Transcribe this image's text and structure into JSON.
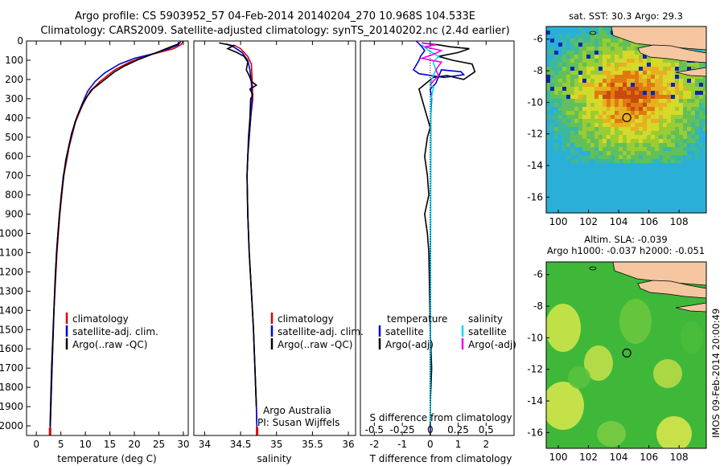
{
  "header": {
    "title_line1": "Argo profile: CS 5903952_57 04-Feb-2014 20140204_270 10.968S 104.533E",
    "title_line2": "Climatology: CARS2009. Satellite-adjusted climatology: synTS_20140202.nc (2.4d earlier)"
  },
  "colors": {
    "climatology": "#dd0000",
    "satellite": "#0000dd",
    "argo": "#000000",
    "sat_salinity": "#00d8ee",
    "argo_salinity": "#ee00ee",
    "land": "#f5c6a0"
  },
  "chart_data": [
    {
      "type": "line",
      "id": "temperature",
      "xlabel": "temperature (deg C)",
      "xlim": [
        -2,
        31
      ],
      "xticks": [
        0,
        5,
        10,
        15,
        20,
        25,
        30
      ],
      "xtick_labels": [
        "0",
        "5",
        "10",
        "15",
        "20",
        "25",
        "30"
      ],
      "ylim": [
        0,
        2050
      ],
      "yticks": [
        0,
        100,
        200,
        300,
        400,
        500,
        600,
        700,
        800,
        900,
        1000,
        1100,
        1200,
        1300,
        1400,
        1500,
        1600,
        1700,
        1800,
        1900,
        2000
      ],
      "ytick_labels": [
        "0",
        "100",
        "200",
        "300",
        "400",
        "500",
        "600",
        "700",
        "800",
        "900",
        "1000",
        "1100",
        "1200",
        "1300",
        "1400",
        "1500",
        "1600",
        "1700",
        "1800",
        "1900",
        "2000"
      ],
      "legend": [
        "climatology",
        "satellite-adj. clim.",
        "Argo(..raw -QC)"
      ],
      "series": [
        {
          "name": "climatology",
          "color": "#dd0000",
          "points": [
            [
              30,
              0
            ],
            [
              29.5,
              20
            ],
            [
              28,
              40
            ],
            [
              25,
              60
            ],
            [
              22,
              80
            ],
            [
              19,
              110
            ],
            [
              16,
              150
            ],
            [
              13,
              210
            ],
            [
              11,
              260
            ],
            [
              9.5,
              330
            ],
            [
              8,
              420
            ],
            [
              6.7,
              550
            ],
            [
              5.6,
              700
            ],
            [
              4.8,
              900
            ],
            [
              4.2,
              1100
            ],
            [
              3.6,
              1400
            ],
            [
              3.2,
              1700
            ],
            [
              2.8,
              2050
            ]
          ]
        },
        {
          "name": "satellite-adj. clim.",
          "color": "#0000dd",
          "points": [
            [
              29.5,
              0
            ],
            [
              29,
              20
            ],
            [
              27,
              40
            ],
            [
              24,
              65
            ],
            [
              20,
              90
            ],
            [
              17,
              120
            ],
            [
              14,
              165
            ],
            [
              12,
              210
            ],
            [
              10.5,
              260
            ],
            [
              9.3,
              330
            ],
            [
              7.9,
              420
            ],
            [
              6.6,
              550
            ],
            [
              5.5,
              700
            ],
            [
              4.7,
              900
            ],
            [
              4.1,
              1100
            ],
            [
              3.6,
              1400
            ],
            [
              3.2,
              1700
            ],
            [
              2.8,
              2050
            ]
          ]
        },
        {
          "name": "Argo(..raw -QC)",
          "color": "#000000",
          "points": [
            [
              29,
              5
            ],
            [
              29,
              15
            ],
            [
              27,
              35
            ],
            [
              25,
              55
            ],
            [
              23,
              75
            ],
            [
              20.5,
              100
            ],
            [
              18,
              130
            ],
            [
              16,
              160
            ],
            [
              14.5,
              190
            ],
            [
              13.5,
              210
            ],
            [
              11.5,
              250
            ],
            [
              10,
              300
            ],
            [
              8.5,
              380
            ],
            [
              7.2,
              480
            ],
            [
              6,
              620
            ],
            [
              5.1,
              800
            ],
            [
              4.4,
              1000
            ],
            [
              3.9,
              1200
            ],
            [
              3.5,
              1450
            ],
            [
              3.1,
              1700
            ],
            [
              2.8,
              2000
            ]
          ]
        }
      ]
    },
    {
      "type": "line",
      "id": "salinity",
      "xlabel": "salinity",
      "xlim": [
        33.85,
        36.1
      ],
      "xticks": [
        34,
        34.5,
        35,
        35.5,
        36
      ],
      "xtick_labels": [
        "34",
        "34.5",
        "35",
        "35.5",
        "36"
      ],
      "ylim": [
        0,
        2050
      ],
      "legend": [
        "climatology",
        "satellite-adj. clim.",
        "Argo(..raw -QC)"
      ],
      "annotations": [
        "Argo Australia",
        "PI: Susan Wijffels"
      ],
      "series": [
        {
          "name": "climatology",
          "color": "#dd0000",
          "points": [
            [
              34.4,
              20
            ],
            [
              34.5,
              40
            ],
            [
              34.6,
              80
            ],
            [
              34.65,
              120
            ],
            [
              34.66,
              200
            ],
            [
              34.67,
              300
            ],
            [
              34.64,
              400
            ],
            [
              34.62,
              500
            ],
            [
              34.6,
              600
            ],
            [
              34.59,
              700
            ],
            [
              34.6,
              900
            ],
            [
              34.62,
              1100
            ],
            [
              34.65,
              1300
            ],
            [
              34.68,
              1500
            ],
            [
              34.7,
              1700
            ],
            [
              34.72,
              1900
            ],
            [
              34.73,
              2050
            ]
          ]
        },
        {
          "name": "satellite-adj. clim.",
          "color": "#0000dd",
          "points": [
            [
              34.3,
              15
            ],
            [
              34.4,
              30
            ],
            [
              34.52,
              60
            ],
            [
              34.6,
              100
            ],
            [
              34.63,
              150
            ],
            [
              34.65,
              220
            ],
            [
              34.66,
              300
            ],
            [
              34.64,
              400
            ],
            [
              34.62,
              500
            ],
            [
              34.6,
              600
            ],
            [
              34.59,
              700
            ],
            [
              34.6,
              900
            ],
            [
              34.62,
              1100
            ],
            [
              34.65,
              1300
            ],
            [
              34.68,
              1500
            ],
            [
              34.7,
              1700
            ],
            [
              34.72,
              1900
            ],
            [
              34.73,
              2050
            ]
          ]
        },
        {
          "name": "Argo(..raw -QC)",
          "color": "#000000",
          "points": [
            [
              34.2,
              10
            ],
            [
              34.4,
              25
            ],
            [
              34.32,
              40
            ],
            [
              34.45,
              60
            ],
            [
              34.55,
              80
            ],
            [
              34.6,
              110
            ],
            [
              34.58,
              150
            ],
            [
              34.62,
              180
            ],
            [
              34.65,
              210
            ],
            [
              34.72,
              230
            ],
            [
              34.63,
              250
            ],
            [
              34.67,
              280
            ],
            [
              34.64,
              300
            ],
            [
              34.63,
              400
            ],
            [
              34.61,
              500
            ],
            [
              34.6,
              600
            ],
            [
              34.59,
              700
            ],
            [
              34.6,
              900
            ],
            [
              34.62,
              1100
            ],
            [
              34.65,
              1300
            ],
            [
              34.68,
              1500
            ],
            [
              34.7,
              1700
            ],
            [
              34.72,
              1900
            ]
          ]
        }
      ]
    },
    {
      "type": "line",
      "id": "difference",
      "xlabel": "T difference from climatology",
      "xlabel_top": "S difference from climatology",
      "xlim": [
        -2.5,
        3
      ],
      "xticks": [
        -2,
        -1,
        0,
        1,
        2
      ],
      "xtick_labels": [
        "-2",
        "-1",
        "0",
        "1",
        "2"
      ],
      "sticks": [
        -0.5,
        -0.25,
        0,
        0.25,
        0.5
      ],
      "stick_labels": [
        "-0.5",
        "-0.25",
        "0",
        "0.25",
        "0.5"
      ],
      "ylim": [
        0,
        2050
      ],
      "legend_headers": [
        "temperature",
        "salinity"
      ],
      "legend": [
        "satellite",
        "Argo(-adj)",
        "satellite",
        "Argo(-adj)"
      ],
      "series": [
        {
          "name": "T satellite",
          "color": "#0000dd",
          "points": [
            [
              -0.5,
              0
            ],
            [
              -0.3,
              30
            ],
            [
              -0.2,
              50
            ],
            [
              -0.35,
              80
            ],
            [
              -0.4,
              100
            ],
            [
              -0.6,
              150
            ],
            [
              -0.4,
              170
            ],
            [
              0.5,
              190
            ],
            [
              1.2,
              175
            ],
            [
              1.1,
              160
            ],
            [
              0.4,
              150
            ],
            [
              0.2,
              220
            ],
            [
              0,
              250
            ],
            [
              0.05,
              300
            ],
            [
              0.02,
              400
            ],
            [
              0,
              2050
            ]
          ]
        },
        {
          "name": "T Argo(-adj)",
          "color": "#000000",
          "points": [
            [
              -0.3,
              10
            ],
            [
              0.3,
              20
            ],
            [
              0.7,
              30
            ],
            [
              1.4,
              40
            ],
            [
              1.0,
              60
            ],
            [
              0.3,
              80
            ],
            [
              0.8,
              100
            ],
            [
              1.5,
              120
            ],
            [
              1.6,
              160
            ],
            [
              1.2,
              200
            ],
            [
              0.6,
              180
            ],
            [
              0.1,
              190
            ],
            [
              -0.4,
              250
            ],
            [
              -0.3,
              300
            ],
            [
              -0.1,
              400
            ],
            [
              0,
              450
            ],
            [
              -0.1,
              500
            ],
            [
              -0.2,
              600
            ],
            [
              -0.1,
              700
            ],
            [
              -0.05,
              800
            ],
            [
              -0.2,
              900
            ],
            [
              -0.1,
              1000
            ],
            [
              -0.05,
              1100
            ],
            [
              0,
              1500
            ],
            [
              0.05,
              1700
            ],
            [
              0,
              1900
            ],
            [
              0,
              2000
            ]
          ]
        },
        {
          "name": "S satellite",
          "color": "#00d8ee",
          "points": [
            [
              -0.3,
              20
            ],
            [
              -0.05,
              50
            ],
            [
              0.3,
              80
            ],
            [
              0.1,
              110
            ],
            [
              0.2,
              150
            ],
            [
              0.05,
              200
            ],
            [
              0,
              230
            ],
            [
              0.12,
              240
            ],
            [
              0.03,
              300
            ],
            [
              0.01,
              500
            ],
            [
              0.01,
              800
            ],
            [
              0.005,
              1100
            ],
            [
              0.005,
              1500
            ],
            [
              0,
              2000
            ]
          ]
        },
        {
          "name": "S Argo(-adj)",
          "color": "#ee00ee",
          "points": [
            [
              -0.3,
              10
            ],
            [
              0.2,
              20
            ],
            [
              -0.2,
              30
            ],
            [
              0.4,
              50
            ],
            [
              0.1,
              70
            ],
            [
              -0.3,
              90
            ],
            [
              0.4,
              110
            ],
            [
              0.2,
              150
            ],
            [
              0.3,
              180
            ],
            [
              0.1,
              210
            ],
            [
              0,
              230
            ]
          ]
        }
      ]
    },
    {
      "type": "heatmap",
      "id": "sst-map",
      "title": "sat. SST: 30.3 Argo: 29.3",
      "xlim": [
        99.2,
        109.8
      ],
      "ylim": [
        -17,
        -5.2
      ],
      "xticks": [
        100,
        102,
        104,
        106,
        108
      ],
      "yticks": [
        -6,
        -8,
        -10,
        -12,
        -14,
        -16
      ],
      "xtick_labels": [
        "100",
        "102",
        "104",
        "106",
        "108"
      ],
      "ytick_labels": [
        "-6",
        "-8",
        "-10",
        "-12",
        "-14",
        "-16"
      ],
      "profile_location": [
        104.533,
        -10.968
      ]
    },
    {
      "type": "heatmap",
      "id": "sla-map",
      "title": "Altim. SLA: -0.039",
      "subtitle": "Argo h1000: -0.037 h2000: -0.051",
      "xlim": [
        99.2,
        109.8
      ],
      "ylim": [
        -17,
        -5.2
      ],
      "xticks": [
        100,
        102,
        104,
        106,
        108
      ],
      "yticks": [
        -6,
        -8,
        -10,
        -12,
        -14,
        -16
      ],
      "xtick_labels": [
        "100",
        "102",
        "104",
        "106",
        "108"
      ],
      "ytick_labels": [
        "-6",
        "-8",
        "-10",
        "-12",
        "-14",
        "-16"
      ],
      "profile_location": [
        104.533,
        -10.968
      ]
    }
  ],
  "watermark": "IMOS 09-Feb-2014 20:00:49"
}
